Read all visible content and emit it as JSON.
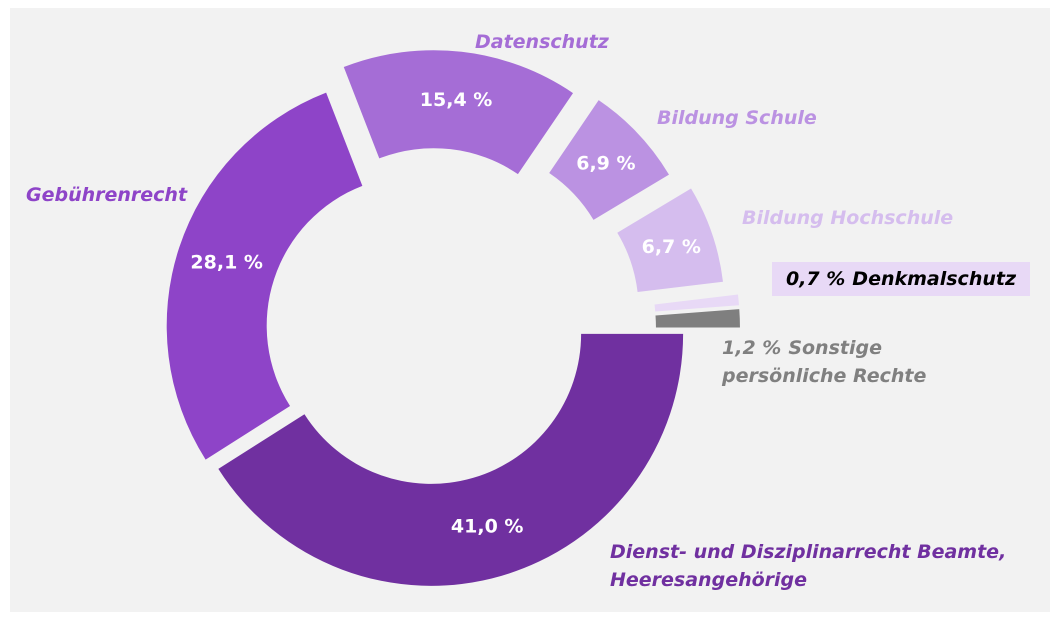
{
  "chart_data": {
    "type": "donut",
    "categories": [
      "Dienst- und Disziplinarrecht Beamte, Heeresangehörige",
      "Gebührenrecht",
      "Datenschutz",
      "Bildung Schule",
      "Bildung Hochschule",
      "Denkmalschutz",
      "Sonstige persönliche Rechte"
    ],
    "values": [
      41.0,
      28.1,
      15.4,
      6.9,
      6.7,
      0.7,
      1.2
    ],
    "value_labels": [
      "41,0 %",
      "28,1 %",
      "15,4 %",
      "6,9 %",
      "6,7 %",
      "0,7 %",
      "1,2 %"
    ],
    "colors": [
      "#7030a0",
      "#8e44c8",
      "#a56dd6",
      "#bb92e2",
      "#d5bdee",
      "#e8d9f6",
      "#7f7f7f"
    ],
    "label_colors": [
      "#7030a0",
      "#8e44c8",
      "#a56dd6",
      "#bb92e2",
      "#d5bdee",
      "#000000",
      "#808080"
    ]
  }
}
